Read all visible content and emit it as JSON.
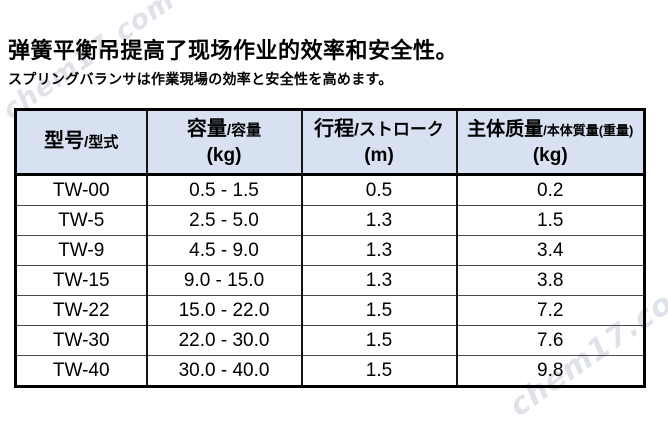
{
  "watermark": {
    "text": "chem17.com"
  },
  "header": {
    "title": "弹簧平衡吊提高了现场作业的效率和安全性。",
    "subtitle": "スプリングバランサは作業現場の効率と安全性を高めます。"
  },
  "colors": {
    "table_header_bg": "#d8e1f1",
    "border": "#000000",
    "watermark": "#c6ccd6"
  },
  "chart_data": {
    "type": "table",
    "columns": [
      {
        "main": "型号",
        "sub": "/型式",
        "unit": ""
      },
      {
        "main": "容量",
        "sub": "/容量",
        "unit": "(kg)"
      },
      {
        "main": "行程",
        "sub": "/ストローク",
        "unit": "(m)"
      },
      {
        "main": "主体质量",
        "sub": "/本体質量(重量)",
        "unit": "(kg)"
      }
    ],
    "rows": [
      {
        "model": "TW-00",
        "capacity": "0.5 - 1.5",
        "stroke": "0.5",
        "weight": "0.2"
      },
      {
        "model": "TW-5",
        "capacity": "2.5 - 5.0",
        "stroke": "1.3",
        "weight": "1.5"
      },
      {
        "model": "TW-9",
        "capacity": "4.5 - 9.0",
        "stroke": "1.3",
        "weight": "3.4"
      },
      {
        "model": "TW-15",
        "capacity": "9.0 - 15.0",
        "stroke": "1.3",
        "weight": "3.8"
      },
      {
        "model": "TW-22",
        "capacity": "15.0 - 22.0",
        "stroke": "1.5",
        "weight": "7.2"
      },
      {
        "model": "TW-30",
        "capacity": "22.0 - 30.0",
        "stroke": "1.5",
        "weight": "7.6"
      },
      {
        "model": "TW-40",
        "capacity": "30.0 - 40.0",
        "stroke": "1.5",
        "weight": "9.8"
      }
    ]
  }
}
